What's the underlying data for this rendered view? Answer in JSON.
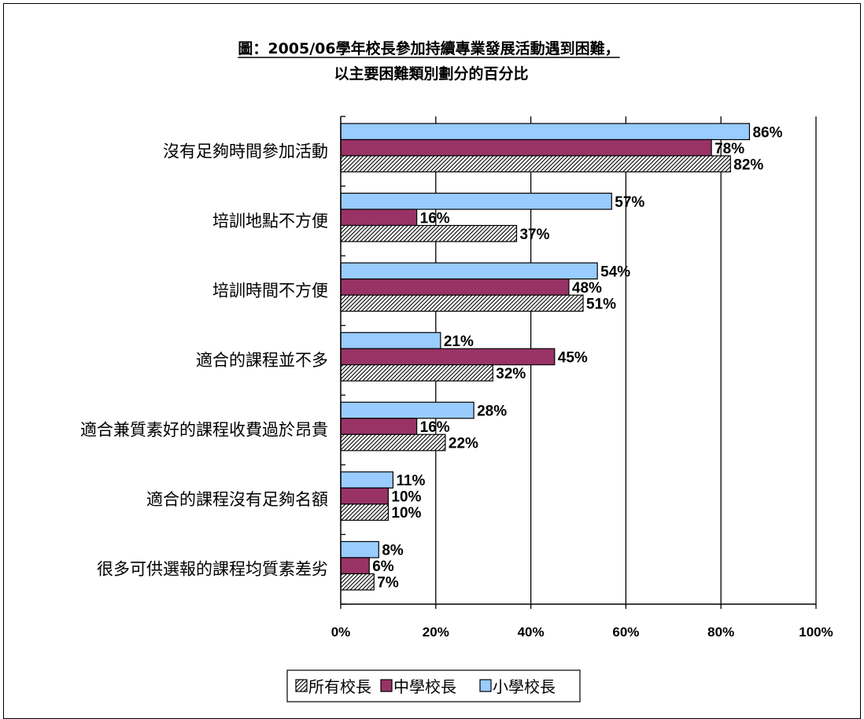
{
  "chart_data": {
    "type": "bar",
    "orientation": "horizontal",
    "title": "圖：2005/06學年校長參加持續專業發展活動遇到困難，",
    "subtitle": "以主要困難類別劃分的百分比",
    "categories": [
      "沒有足夠時間參加活動",
      "培訓地點不方便",
      "培訓時間不方便",
      "適合的課程並不多",
      "適合兼質素好的課程收費過於昂貴",
      "適合的課程沒有足夠名額",
      "很多可供選報的課程均質素差劣"
    ],
    "series": [
      {
        "name": "小學校長",
        "color": "#99ccff",
        "pattern": "solid",
        "values": [
          86,
          57,
          54,
          21,
          28,
          11,
          8
        ],
        "labels": [
          "86%",
          "57%",
          "54%",
          "21%",
          "28%",
          "11%",
          "8%"
        ]
      },
      {
        "name": "中學校長",
        "color": "#993366",
        "pattern": "solid",
        "values": [
          78,
          16,
          48,
          45,
          16,
          10,
          6
        ],
        "labels": [
          "78%",
          "16%",
          "48%",
          "45%",
          "16%",
          "10%",
          "6%"
        ]
      },
      {
        "name": "所有校長",
        "color": "#000000",
        "pattern": "diagonal-hatch",
        "values": [
          82,
          37,
          51,
          32,
          22,
          10,
          7
        ],
        "labels": [
          "82%",
          "37%",
          "51%",
          "32%",
          "22%",
          "10%",
          "7%"
        ]
      }
    ],
    "xlim": [
      0,
      100
    ],
    "xticks": [
      "0%",
      "20%",
      "40%",
      "60%",
      "80%",
      "100%"
    ],
    "xgrid": true,
    "legend": {
      "position": "bottom",
      "order": [
        "所有校長",
        "中學校長",
        "小學校長"
      ]
    }
  }
}
